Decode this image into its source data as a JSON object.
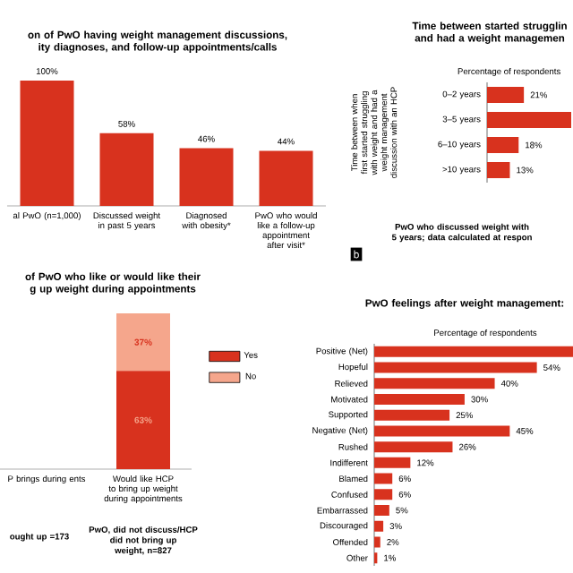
{
  "chart_data": [
    {
      "type": "bar",
      "title": "on of PwO having weight management discussions, ity diagnoses, and follow-up appointments/calls",
      "categories": [
        "al PwO (n=1,000)",
        "Discussed weight in past 5 years",
        "Diagnosed with obesity*",
        "PwO who would like a follow-up appointment after visit*"
      ],
      "values": [
        100,
        58,
        46,
        44
      ],
      "value_labels": [
        "100%",
        "58%",
        "46%",
        "44%"
      ],
      "color": "#d8321e",
      "ylim": [
        0,
        100
      ],
      "tick_labels": "x"
    },
    {
      "type": "bar",
      "orientation": "horizontal",
      "title": "Time between started strugglin and had a weight managemen",
      "subtitle": "Percentage of respondents",
      "ylabel": "Time between when first started struggling with weight and had a weight management discussion with an HCP",
      "categories": [
        "0–2 years",
        "3–5 years",
        "6–10 years",
        ">10 years"
      ],
      "values": [
        21,
        48,
        18,
        13
      ],
      "value_labels": [
        "21%",
        null,
        "18%",
        "13%"
      ],
      "color": "#d8321e",
      "xlim": [
        0,
        48
      ],
      "tick_labels": "y",
      "annotations": [
        "PwO who discussed weight with 5 years; data calculated at respon",
        "b"
      ]
    },
    {
      "type": "bar",
      "stacked": true,
      "title": "of PwO who like or would like their g up weight during appointments",
      "categories": [
        "P brings during ents",
        "Would like HCP to bring up weight during appointments"
      ],
      "series": [
        {
          "name": "Yes",
          "color": "#d8321e",
          "values": [
            null,
            63
          ],
          "value_labels": [
            null,
            "63%"
          ]
        },
        {
          "name": "No",
          "color": "#f5a68c",
          "values": [
            null,
            37
          ],
          "value_labels": [
            null,
            "37%"
          ]
        }
      ],
      "tick_labels": "x",
      "legend": "right",
      "annotations": [
        "ought up =173",
        "PwO, did not discuss/HCP did not bring up weight, n=827"
      ]
    },
    {
      "type": "bar",
      "orientation": "horizontal",
      "title": "PwO feelings after weight management:",
      "subtitle": "Percentage of respondents",
      "categories": [
        "Positive (Net)",
        "Hopeful",
        "Relieved",
        "Motivated",
        "Supported",
        "Negative (Net)",
        "Rushed",
        "Indifferent",
        "Blamed",
        "Confused",
        "Embarrassed",
        "Discouraged",
        "Offended",
        "Other"
      ],
      "values": [
        66,
        54,
        40,
        30,
        25,
        45,
        26,
        12,
        6,
        6,
        5,
        3,
        2,
        1
      ],
      "value_labels": [
        null,
        "54%",
        "40%",
        "30%",
        "25%",
        "45%",
        "26%",
        "12%",
        "6%",
        "6%",
        "5%",
        "3%",
        "2%",
        "1%"
      ],
      "color": "#d8321e",
      "xlim": [
        0,
        66
      ],
      "tick_labels": "y"
    }
  ]
}
